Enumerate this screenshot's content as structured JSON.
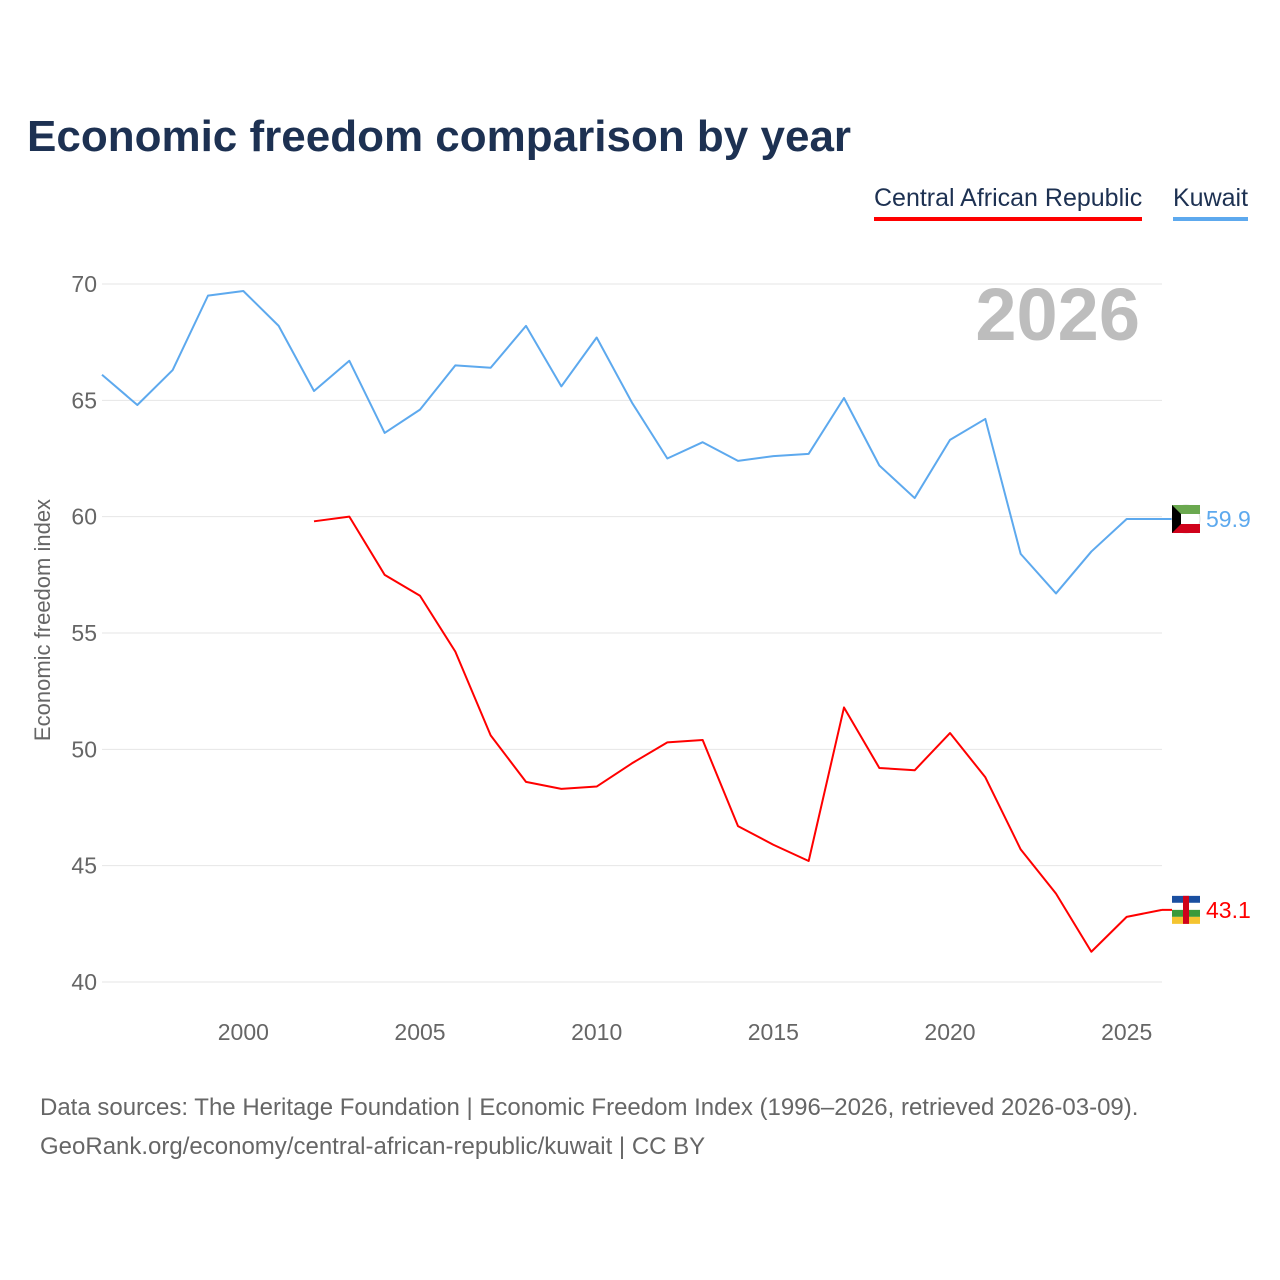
{
  "title": "Economic freedom comparison by year",
  "legend": [
    "Central African Republic",
    "Kuwait"
  ],
  "year_watermark": "2026",
  "source_line1": "Data sources: The Heritage Foundation | Economic Freedom Index (1996–2026, retrieved 2026-03-09).",
  "source_line2": "GeoRank.org/economy/central-african-republic/kuwait | CC BY",
  "chart_data": {
    "type": "line",
    "title": "Economic freedom comparison by year",
    "xlabel": "",
    "ylabel": "Economic freedom index",
    "xlim": [
      1996,
      2026
    ],
    "ylim": [
      40,
      70
    ],
    "xticks": [
      2000,
      2005,
      2010,
      2015,
      2020,
      2025
    ],
    "yticks": [
      40,
      45,
      50,
      55,
      60,
      65,
      70
    ],
    "grid": true,
    "legend_position": "top-right",
    "series": [
      {
        "name": "Central African Republic",
        "color": "#ff0000",
        "end_label": "43.1",
        "x": [
          2002,
          2003,
          2004,
          2005,
          2006,
          2007,
          2008,
          2009,
          2010,
          2011,
          2012,
          2013,
          2014,
          2015,
          2016,
          2017,
          2018,
          2019,
          2020,
          2021,
          2022,
          2023,
          2024,
          2025,
          2026
        ],
        "values": [
          59.8,
          60.0,
          57.5,
          56.6,
          54.2,
          50.6,
          48.6,
          48.3,
          48.4,
          49.4,
          50.3,
          50.4,
          46.7,
          45.9,
          45.2,
          51.8,
          49.2,
          49.1,
          50.7,
          48.8,
          45.7,
          43.8,
          41.3,
          42.8,
          43.1
        ]
      },
      {
        "name": "Kuwait",
        "color": "#5da9ee",
        "end_label": "59.9",
        "x": [
          1996,
          1997,
          1998,
          1999,
          2000,
          2001,
          2002,
          2003,
          2004,
          2005,
          2006,
          2007,
          2008,
          2009,
          2010,
          2011,
          2012,
          2013,
          2014,
          2015,
          2016,
          2017,
          2018,
          2019,
          2020,
          2021,
          2022,
          2023,
          2024,
          2025,
          2026
        ],
        "values": [
          66.1,
          64.8,
          66.3,
          69.5,
          69.7,
          68.2,
          65.4,
          66.7,
          63.6,
          64.6,
          66.5,
          66.4,
          68.2,
          65.6,
          67.7,
          64.9,
          62.5,
          63.2,
          62.4,
          62.6,
          62.7,
          65.1,
          62.2,
          60.8,
          63.3,
          64.2,
          58.4,
          56.7,
          58.5,
          59.9,
          59.9
        ]
      }
    ]
  }
}
